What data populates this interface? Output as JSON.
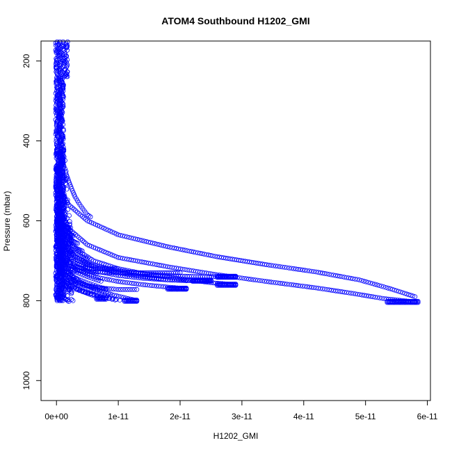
{
  "chart_data": {
    "type": "scatter",
    "title": "ATOM4 Southbound H1202_GMI",
    "xlabel": "H1202_GMI",
    "ylabel": "Pressure (mbar)",
    "xlim": [
      -2.5e-12,
      6.05e-11
    ],
    "ylim": [
      1050,
      150
    ],
    "y_reversed": true,
    "x_ticks": [
      {
        "value": 0,
        "label": "0e+00"
      },
      {
        "value": 1e-11,
        "label": "1e-11"
      },
      {
        "value": 2e-11,
        "label": "2e-11"
      },
      {
        "value": 3e-11,
        "label": "3e-11"
      },
      {
        "value": 4e-11,
        "label": "4e-11"
      },
      {
        "value": 5e-11,
        "label": "5e-11"
      },
      {
        "value": 6e-11,
        "label": "6e-11"
      }
    ],
    "y_ticks": [
      {
        "value": 200,
        "label": "200"
      },
      {
        "value": 400,
        "label": "400"
      },
      {
        "value": 600,
        "label": "600"
      },
      {
        "value": 800,
        "label": "800"
      },
      {
        "value": 1000,
        "label": "1000"
      }
    ],
    "marker": "open-circle",
    "grid": false,
    "legend": "none",
    "color": "#0000ff",
    "curves": [
      {
        "x": [
          0,
          5e-13,
          2e-12,
          5e-12,
          1e-11,
          1.8e-11,
          2.6e-11,
          3.4e-11,
          4.2e-11,
          4.9e-11,
          5.4e-11,
          5.8e-11
        ],
        "y": [
          470,
          520,
          560,
          600,
          635,
          665,
          690,
          710,
          728,
          748,
          770,
          790
        ]
      },
      {
        "x": [
          0,
          5e-13,
          2e-12,
          5e-12,
          1e-11,
          1.8e-11,
          2.6e-11,
          3.4e-11,
          4.2e-11,
          4.8e-11,
          5.3e-11,
          5.8e-11
        ],
        "y": [
          520,
          570,
          620,
          660,
          692,
          715,
          735,
          752,
          768,
          782,
          795,
          803
        ]
      },
      {
        "x": [
          0,
          1e-12,
          3e-12,
          6e-12,
          1e-11,
          1.4e-11,
          1.9e-11,
          2.4e-11,
          2.9e-11
        ],
        "y": [
          600,
          650,
          690,
          712,
          725,
          733,
          738,
          740,
          740
        ]
      },
      {
        "x": [
          0,
          1e-12,
          3e-12,
          6e-12,
          1e-11,
          1.4e-11,
          1.8e-11,
          2.2e-11,
          2.5e-11
        ],
        "y": [
          620,
          670,
          705,
          725,
          737,
          744,
          748,
          750,
          750
        ]
      },
      {
        "x": [
          0,
          1e-12,
          3e-12,
          6e-12,
          1e-11,
          1.5e-11,
          2e-11,
          2.5e-11,
          2.9e-11
        ],
        "y": [
          560,
          620,
          670,
          700,
          720,
          735,
          745,
          755,
          760
        ]
      },
      {
        "x": [
          0,
          1e-12,
          3e-12,
          6e-12,
          1e-11,
          1.4e-11,
          1.8e-11,
          2.1e-11
        ],
        "y": [
          600,
          650,
          690,
          715,
          730,
          740,
          748,
          750
        ]
      },
      {
        "x": [
          0,
          1e-12,
          3e-12,
          6e-12,
          1e-11,
          1.4e-11,
          1.8e-11,
          2.1e-11
        ],
        "y": [
          640,
          690,
          720,
          740,
          752,
          760,
          766,
          770
        ]
      },
      {
        "x": [
          0,
          1e-12,
          2e-12,
          4e-12,
          6e-12,
          9e-12,
          1.3e-11
        ],
        "y": [
          660,
          700,
          730,
          755,
          770,
          785,
          800
        ]
      },
      {
        "x": [
          0,
          5e-13,
          1.5e-12,
          3e-12,
          5e-12,
          7e-12,
          1e-11,
          1.3e-11
        ],
        "y": [
          680,
          710,
          735,
          752,
          762,
          768,
          772,
          772
        ]
      },
      {
        "x": [
          0,
          1e-12,
          2.5e-12,
          4.5e-12,
          6.5e-12,
          8e-12
        ],
        "y": [
          700,
          730,
          750,
          762,
          768,
          772
        ]
      },
      {
        "x": [
          1.5e-12,
          2.2e-12,
          3e-12,
          3.8e-12,
          4.5e-12,
          5e-12,
          5.5e-12
        ],
        "y": [
          480,
          510,
          540,
          560,
          575,
          585,
          590
        ]
      },
      {
        "x": [
          5e-13,
          2e-12,
          4e-12,
          6e-12,
          8e-12,
          1e-11
        ],
        "y": [
          700,
          712,
          718,
          720,
          720,
          720
        ]
      },
      {
        "x": [
          5e-13,
          3e-12,
          6e-12,
          1e-11,
          1.5e-11,
          2e-11
        ],
        "y": [
          715,
          724,
          728,
          730,
          730,
          730
        ]
      },
      {
        "x": [
          5e-13,
          2e-12,
          3.5e-12,
          5e-12,
          6.5e-12,
          7.5e-12,
          7.8e-12
        ],
        "y": [
          740,
          760,
          772,
          782,
          790,
          793,
          795
        ]
      },
      {
        "x": [
          0,
          5e-13,
          1e-12,
          1.5e-12,
          1.8e-12,
          2e-12
        ],
        "y": [
          760,
          775,
          788,
          796,
          800,
          802
        ]
      }
    ],
    "end_clusters": [
      {
        "x_start": 5.35e-11,
        "x_end": 5.85e-11,
        "y": 803
      },
      {
        "x_start": 2.6e-11,
        "x_end": 2.9e-11,
        "y": 740
      },
      {
        "x_start": 2.2e-11,
        "x_end": 2.5e-11,
        "y": 750
      },
      {
        "x_start": 2.6e-11,
        "x_end": 2.9e-11,
        "y": 760
      },
      {
        "x_start": 1.8e-11,
        "x_end": 2.1e-11,
        "y": 770
      },
      {
        "x_start": 1.1e-11,
        "x_end": 1.3e-11,
        "y": 800
      },
      {
        "x_start": 6.5e-12,
        "x_end": 8e-12,
        "y": 795
      }
    ]
  }
}
